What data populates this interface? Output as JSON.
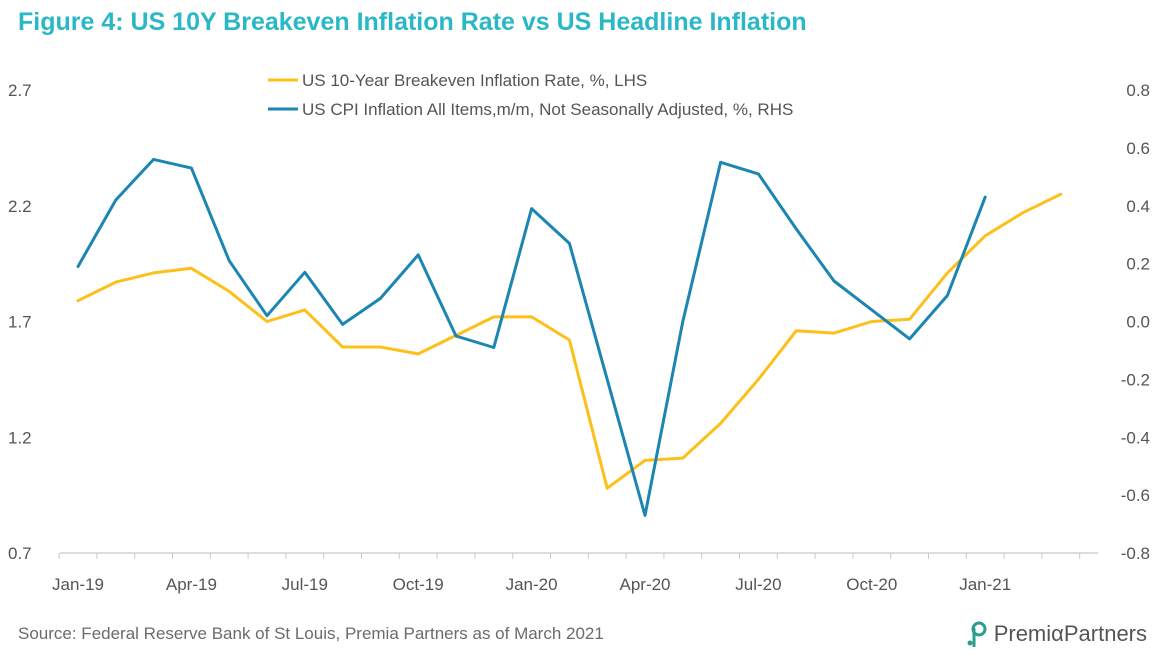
{
  "title": "Figure 4: US 10Y Breakeven Inflation Rate vs US Headline Inflation",
  "source": "Source: Federal Reserve Bank of St Louis, Premia Partners as of March 2021",
  "logo_text": "PremiαPartners",
  "colors": {
    "title": "#2ab7c6",
    "breakeven": "#fdbf1a",
    "cpi": "#1a86b1",
    "logo": "#2a9d8f"
  },
  "chart_data": {
    "type": "line",
    "grid": false,
    "legend_position": "top",
    "x": [
      "2019-01",
      "2019-02",
      "2019-03",
      "2019-04",
      "2019-05",
      "2019-06",
      "2019-07",
      "2019-08",
      "2019-09",
      "2019-10",
      "2019-11",
      "2019-12",
      "2020-01",
      "2020-02",
      "2020-03",
      "2020-04",
      "2020-05",
      "2020-06",
      "2020-07",
      "2020-08",
      "2020-09",
      "2020-10",
      "2020-11",
      "2020-12",
      "2021-01",
      "2021-02",
      "2021-03"
    ],
    "x_tick_labels": [
      "Jan-19",
      "Apr-19",
      "Jul-19",
      "Oct-19",
      "Jan-20",
      "Apr-20",
      "Jul-20",
      "Oct-20",
      "Jan-21"
    ],
    "x_tick_months": [
      "2019-01",
      "2019-04",
      "2019-07",
      "2019-10",
      "2020-01",
      "2020-04",
      "2020-07",
      "2020-10",
      "2021-01"
    ],
    "y_left": {
      "ylim": [
        0.7,
        2.7
      ],
      "ticks": [
        "0.7",
        "1.2",
        "1.7",
        "2.2",
        "2.7"
      ]
    },
    "y_right": {
      "ylim": [
        -0.8,
        0.8
      ],
      "ticks": [
        "-0.8",
        "-0.6",
        "-0.4",
        "-0.2",
        "0.0",
        "0.2",
        "0.4",
        "0.6",
        "0.8"
      ]
    },
    "series": [
      {
        "name": "US 10-Year Breakeven Inflation Rate, %, LHS",
        "axis": "left",
        "values": [
          1.79,
          1.87,
          1.91,
          1.93,
          1.83,
          1.7,
          1.75,
          1.59,
          1.59,
          1.56,
          1.64,
          1.72,
          1.72,
          1.62,
          0.98,
          1.1,
          1.11,
          1.26,
          1.45,
          1.66,
          1.65,
          1.7,
          1.71,
          1.91,
          2.07,
          2.17,
          2.25
        ]
      },
      {
        "name": "US CPI Inflation All Items,m/m, Not Seasonally Adjusted, %, RHS",
        "axis": "right",
        "values": [
          0.19,
          0.42,
          0.56,
          0.53,
          0.21,
          0.02,
          0.17,
          -0.01,
          0.08,
          0.23,
          -0.05,
          -0.09,
          0.39,
          0.27,
          null,
          -0.67,
          0.0,
          0.55,
          0.51,
          0.32,
          0.14,
          0.04,
          -0.06,
          0.09,
          0.43,
          null,
          null
        ]
      }
    ]
  }
}
